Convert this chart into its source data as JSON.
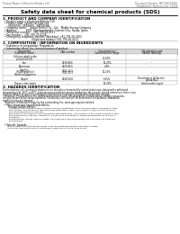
{
  "header_left": "Product Name: Lithium Ion Battery Cell",
  "header_right_line1": "Document Number: SRP-049-00010",
  "header_right_line2": "Established / Revision: Dec.7.2010",
  "title": "Safety data sheet for chemical products (SDS)",
  "section1_title": "1. PRODUCT AND COMPANY IDENTIFICATION",
  "section1_lines": [
    "  • Product name: Lithium Ion Battery Cell",
    "  • Product code: Cylindrical-type cell",
    "       SR18650U, SR18650L, SR18650A",
    "  • Company name:    Sanyo Electric Co., Ltd.,  Mobile Energy Company",
    "  • Address:           2001  Kamimashinden, Sumoto City, Hyogo, Japan",
    "  • Telephone number:   +81-799-26-4111",
    "  • Fax number:   +81-799-26-4128",
    "  • Emergency telephone number (Weekday) +81-799-26-3062",
    "                                     (Night and holiday) +81-799-26-4131"
  ],
  "section2_title": "2. COMPOSITION / INFORMATION ON INGREDIENTS",
  "section2_intro": "  • Substance or preparation: Preparation",
  "section2_sub": "  • Information about the chemical nature of product:",
  "section3_title": "3. HAZARDS IDENTIFICATION",
  "section3_para1": [
    "For the battery cell, chemical substances are stored in a hermetically sealed metal case, designed to withstand",
    "temperatures of -20°C to 60°C and pressures-conditions during normal use. As a result, during normal use, there is no",
    "physical danger of ignition or explosion and there is no danger of hazardous materials leakage.",
    "   However, if exposed to a fire, added mechanical shocks, decomposition, or heat above ordinary measures,",
    "the gas release valve can be operated. The battery cell case will be breached if fire-patterns, hazardous",
    "materials may be released.",
    "   Moreover, if heated strongly by the surrounding fire, some gas may be emitted."
  ],
  "section3_bullet1": "  • Most important hazard and effects:",
  "section3_health": "       Human health effects:",
  "section3_health_lines": [
    "         Inhalation: The release of the electrolyte has an anesthesia action and stimulates a respiratory tract.",
    "         Skin contact: The release of the electrolyte stimulates a skin. The electrolyte skin contact causes a",
    "         sore and stimulation on the skin.",
    "         Eye contact: The release of the electrolyte stimulates eyes. The electrolyte eye contact causes a sore",
    "         and stimulation on the eye. Especially, a substance that causes a strong inflammation of the eye is",
    "         contained.",
    "         Environmental effects: Since a battery cell remains in the environment, do not throw out it into the",
    "         environment."
  ],
  "section3_bullet2": "  • Specific hazards:",
  "section3_specific": [
    "       If the electrolyte contacts with water, it will generate detrimental hydrogen fluoride.",
    "       Since the used electrolyte is inflammable liquid, do not bring close to fire."
  ],
  "table_rows": [
    [
      "Lithium cobalt oxide\n(LiCoO2/LiCO2)",
      "-",
      "30-50%",
      "-"
    ],
    [
      "Iron",
      "7439-89-6",
      "10-20%",
      "-"
    ],
    [
      "Aluminum",
      "7429-90-5",
      "2-8%",
      "-"
    ],
    [
      "Graphite\n(Flake graphite)\n(Artificial graphite)",
      "7782-42-5\n7782-42-5",
      "10-25%",
      "-"
    ],
    [
      "Copper",
      "7440-50-8",
      "5-15%",
      "Sensitization of the skin\ngroup No.2"
    ],
    [
      "Organic electrolyte",
      "-",
      "10-20%",
      "Inflammable liquid"
    ]
  ],
  "bg_color": "#ffffff",
  "text_color": "#000000",
  "gray_line": "#999999",
  "table_header_bg": "#d8d8d8"
}
